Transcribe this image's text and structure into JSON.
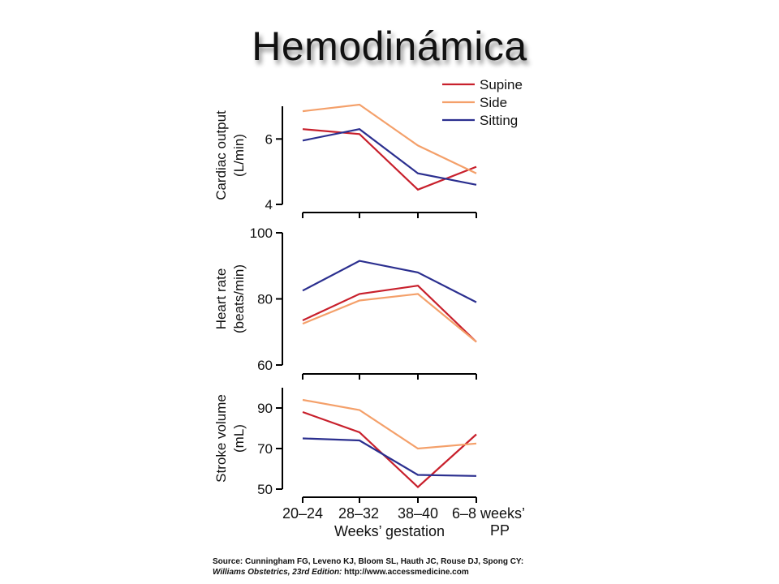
{
  "slide": {
    "title": "Hemodinámica"
  },
  "source": {
    "label": "Source:",
    "authors": "Cunningham FG, Leveno KJ, Bloom SL, Hauth JC, Rouse DJ, Spong CY:",
    "book": "Williams Obstetrics, 23rd Edition:",
    "url": "http://www.accessmedicine.com"
  },
  "colors": {
    "supine": "#c8202c",
    "side": "#f4a06a",
    "sitting": "#2b2f8f",
    "axis": "#000000"
  },
  "chart_data": [
    {
      "type": "line",
      "ylabel": [
        "Cardiac output",
        "(L/min)"
      ],
      "ylim": [
        4,
        7
      ],
      "yticks": [
        4,
        6
      ],
      "categories": [
        "20–24",
        "28–32",
        "38–40",
        "6–8 weeks’ PP"
      ],
      "legend": {
        "placement": "top-right",
        "entries": [
          "Supine",
          "Side",
          "Sitting"
        ]
      },
      "series": [
        {
          "name": "Supine",
          "values": [
            6.3,
            6.15,
            4.45,
            5.15
          ]
        },
        {
          "name": "Side",
          "values": [
            6.85,
            7.05,
            5.8,
            4.95
          ]
        },
        {
          "name": "Sitting",
          "values": [
            5.95,
            6.3,
            4.95,
            4.6
          ]
        }
      ]
    },
    {
      "type": "line",
      "ylabel": [
        "Heart rate",
        "(beats/min)"
      ],
      "ylim": [
        60,
        100
      ],
      "yticks": [
        60,
        80,
        100
      ],
      "categories": [
        "20–24",
        "28–32",
        "38–40",
        "6–8 weeks’ PP"
      ],
      "series": [
        {
          "name": "Supine",
          "values": [
            73.5,
            81.5,
            84,
            67
          ]
        },
        {
          "name": "Side",
          "values": [
            72.5,
            79.5,
            81.5,
            67
          ]
        },
        {
          "name": "Sitting",
          "values": [
            82.5,
            91.5,
            88,
            79
          ]
        }
      ]
    },
    {
      "type": "line",
      "ylabel": [
        "Stroke volume",
        "(mL)"
      ],
      "ylim": [
        50,
        100
      ],
      "yticks": [
        50,
        70,
        90
      ],
      "xlabel": "Weeks’ gestation",
      "tick_labels": [
        "20–24",
        "28–32",
        "38–40",
        "6–8 weeks’"
      ],
      "tick_sublabels": [
        "",
        "",
        "",
        "PP"
      ],
      "categories": [
        "20–24",
        "28–32",
        "38–40",
        "6–8 weeks’ PP"
      ],
      "series": [
        {
          "name": "Supine",
          "values": [
            88,
            78,
            51,
            77
          ]
        },
        {
          "name": "Side",
          "values": [
            94,
            89,
            70,
            72.5
          ]
        },
        {
          "name": "Sitting",
          "values": [
            75,
            74,
            57,
            56.5
          ]
        }
      ]
    }
  ]
}
